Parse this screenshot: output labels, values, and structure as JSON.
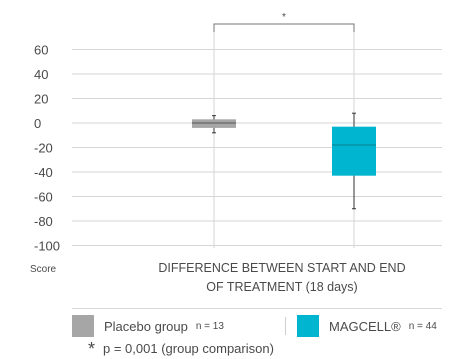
{
  "chart_data": {
    "type": "box",
    "yticks": [
      60,
      40,
      20,
      0,
      -20,
      -40,
      -60,
      -80,
      -100
    ],
    "ylim": [
      -100,
      70
    ],
    "ylabel": "Score",
    "xlabel_lines": [
      "DIFFERENCE BETWEEN START AND END",
      "OF TREATMENT (18 days)"
    ],
    "significance_marker": "*",
    "grid": true,
    "series": [
      {
        "name": "Placebo group",
        "n_label": "n = 13",
        "color": "#a6a6a6",
        "whisker_low": -8,
        "q1": -4,
        "median": 0,
        "q3": 3,
        "whisker_high": 6
      },
      {
        "name": "MAGCELL®",
        "n_label": "n = 44",
        "color": "#00b5cf",
        "whisker_low": -70,
        "q1": -43,
        "median": -18,
        "q3": -3,
        "whisker_high": 8
      }
    ]
  },
  "footnote": {
    "star": "*",
    "text": "p = 0,001 (group comparison)"
  }
}
